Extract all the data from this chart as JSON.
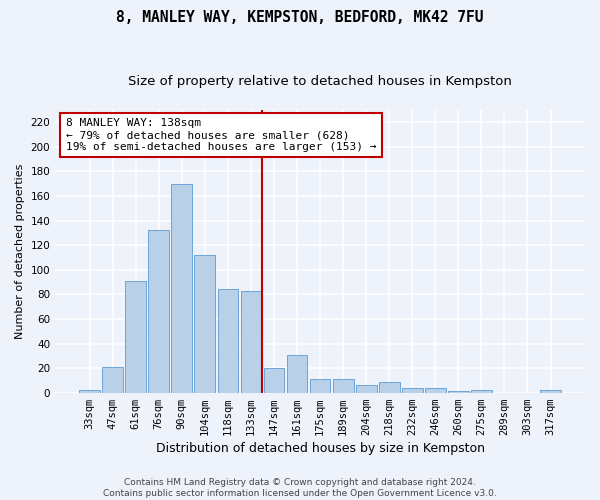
{
  "title": "8, MANLEY WAY, KEMPSTON, BEDFORD, MK42 7FU",
  "subtitle": "Size of property relative to detached houses in Kempston",
  "xlabel": "Distribution of detached houses by size in Kempston",
  "ylabel": "Number of detached properties",
  "categories": [
    "33sqm",
    "47sqm",
    "61sqm",
    "76sqm",
    "90sqm",
    "104sqm",
    "118sqm",
    "133sqm",
    "147sqm",
    "161sqm",
    "175sqm",
    "189sqm",
    "204sqm",
    "218sqm",
    "232sqm",
    "246sqm",
    "260sqm",
    "275sqm",
    "289sqm",
    "303sqm",
    "317sqm"
  ],
  "values": [
    2,
    21,
    91,
    132,
    170,
    112,
    84,
    83,
    20,
    31,
    11,
    11,
    6,
    9,
    4,
    4,
    1,
    2,
    0,
    0,
    2
  ],
  "bar_color": "#b8d0e8",
  "bar_edge_color": "#5b9bd5",
  "vline_index": 7.5,
  "vline_color": "#c00000",
  "annotation_line1": "8 MANLEY WAY: 138sqm",
  "annotation_line2": "← 79% of detached houses are smaller (628)",
  "annotation_line3": "19% of semi-detached houses are larger (153) →",
  "annotation_box_facecolor": "#ffffff",
  "annotation_box_edgecolor": "#c00000",
  "ylim": [
    0,
    230
  ],
  "yticks": [
    0,
    20,
    40,
    60,
    80,
    100,
    120,
    140,
    160,
    180,
    200,
    220
  ],
  "title_fontsize": 10.5,
  "subtitle_fontsize": 9.5,
  "xlabel_fontsize": 9,
  "ylabel_fontsize": 8,
  "tick_fontsize": 7.5,
  "annotation_fontsize": 8,
  "footer_fontsize": 6.5,
  "footer_line1": "Contains HM Land Registry data © Crown copyright and database right 2024.",
  "footer_line2": "Contains public sector information licensed under the Open Government Licence v3.0.",
  "background_color": "#eef2fb",
  "grid_color": "#ffffff"
}
